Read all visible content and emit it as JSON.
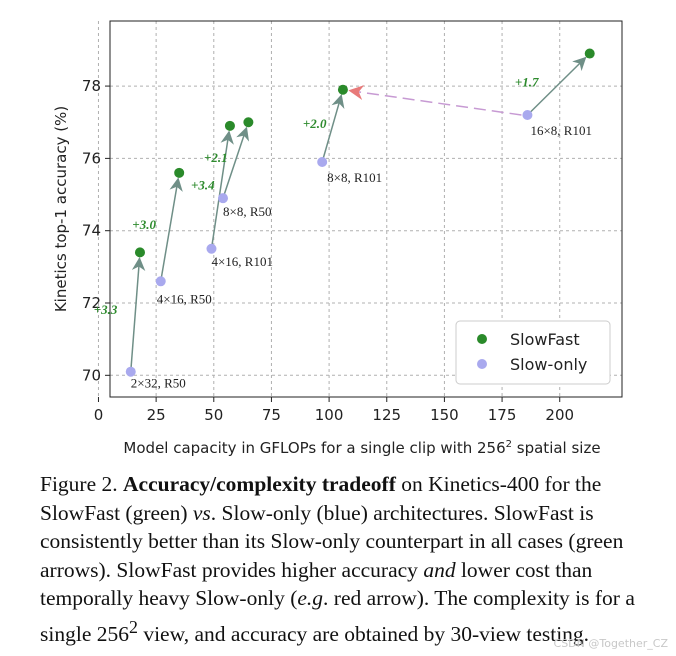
{
  "chart_data": {
    "type": "scatter",
    "xlabel": "Model capacity in GFLOPs for a single clip with 256",
    "xlabel_sup": "2",
    "xlabel_suffix": " spatial size",
    "ylabel": "Kinetics top-1 accuracy (%)",
    "xlim": [
      5,
      227
    ],
    "ylim": [
      69.4,
      79.8
    ],
    "xticks": [
      0,
      25,
      50,
      75,
      100,
      125,
      150,
      175,
      200
    ],
    "yticks": [
      70,
      72,
      74,
      76,
      78
    ],
    "grid": true,
    "legend_position": "lower-right",
    "colors": {
      "slowfast": "#2a8a2a",
      "slowonly": "#a9a9ee",
      "arrow": "#6f8f87",
      "red_arrow": "#e87a7a",
      "red_arrow_dash": "#c79ad3",
      "gain_text": "#2e8b2e"
    },
    "series": [
      {
        "name": "SlowFast",
        "points": [
          {
            "x": 18,
            "y": 73.4
          },
          {
            "x": 35,
            "y": 75.6
          },
          {
            "x": 57,
            "y": 76.9
          },
          {
            "x": 65,
            "y": 77.0
          },
          {
            "x": 106,
            "y": 77.9
          },
          {
            "x": 213,
            "y": 78.9
          }
        ]
      },
      {
        "name": "Slow-only",
        "points": [
          {
            "x": 14,
            "y": 70.1,
            "label": "2×32, R50"
          },
          {
            "x": 27,
            "y": 72.6,
            "label": "4×16, R50"
          },
          {
            "x": 49,
            "y": 73.5,
            "label": "4×16, R101"
          },
          {
            "x": 54,
            "y": 74.9,
            "label": "8×8, R50"
          },
          {
            "x": 97,
            "y": 75.9,
            "label": "8×8, R101"
          },
          {
            "x": 186,
            "y": 77.2,
            "label": "16×8, R101"
          }
        ]
      }
    ],
    "gains": [
      "+3.3",
      "+3.0",
      "+3.4",
      "+2.1",
      "+2.0",
      "+1.7"
    ],
    "red_arrow": {
      "from": {
        "x": 186,
        "y": 77.2
      },
      "to": {
        "x": 106,
        "y": 77.9
      }
    }
  },
  "caption": {
    "figure_no": "Figure 2.",
    "bold_title": "Accuracy/complexity tradeoff",
    "text_1": " on Kinetics-400 for the SlowFast (green) ",
    "vs": "vs",
    "text_2": ". Slow-only (blue) architectures. SlowFast is consistently better than its Slow-only counterpart in all cases (green arrows). SlowFast provides higher accuracy ",
    "and": "and",
    "text_3": " lower cost than temporally heavy Slow-only (",
    "eg": "e.g",
    "text_4": ". red arrow). The complexity is for a single 256",
    "sup": "2",
    "text_5": " view, and accuracy are obtained by 30-view testing."
  },
  "watermark": "CSDN @Together_CZ"
}
